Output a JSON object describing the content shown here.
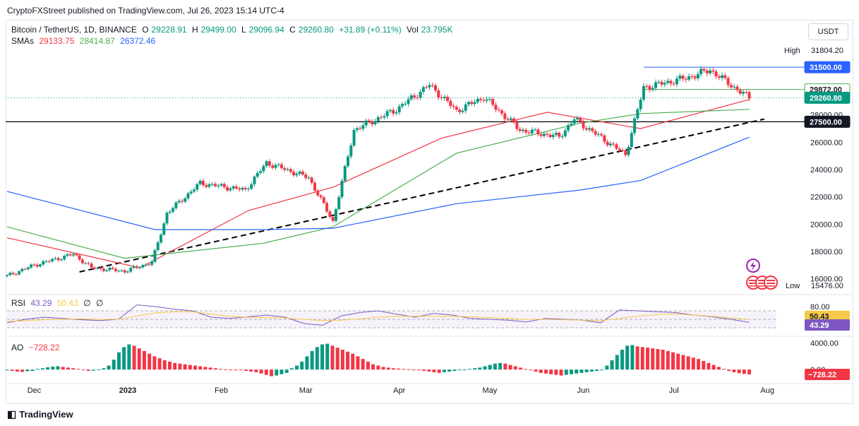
{
  "header": {
    "published": "CryptoFXStreet published on TradingView.com, Jul 26, 2023 15:14 UTC-4"
  },
  "legend": {
    "symbol": "Bitcoin / TetherUS, 1D, BINANCE",
    "o_label": "O",
    "o_val": "29228.91",
    "h_label": "H",
    "h_val": "29499.00",
    "l_label": "L",
    "l_val": "29096.94",
    "c_label": "C",
    "c_val": "29260.80",
    "chg": "+31.89 (+0.11%)",
    "vol_label": "Vol",
    "vol_val": "23.795K",
    "sma_label": "SMAs",
    "sma1": "29133.75",
    "sma2": "28414.87",
    "sma3": "26372.46"
  },
  "currency_button": "USDT",
  "high_label": "High",
  "high_value": "31804.20",
  "low_label": "Low",
  "low_value": "15476.00",
  "rsi_legend": {
    "label": "RSI",
    "v1": "43.29",
    "v2": "50.43",
    "v3": "∅",
    "v4": "∅"
  },
  "ao_legend": {
    "label": "AO",
    "v1": "−728.22"
  },
  "footer": {
    "brand": "TradingView"
  },
  "colors": {
    "up": "#089981",
    "down": "#f23645",
    "sma50": "#f23645",
    "sma100": "#4caf50",
    "sma200": "#2962ff",
    "rsi": "#7e57c2",
    "rsi_ma": "#f7c948",
    "price_line": "#089981"
  },
  "chart_data": [
    {
      "type": "candlestick",
      "title": "Bitcoin / TetherUS, 1D, BINANCE",
      "x_ticks": [
        "Dec",
        "2023",
        "Feb",
        "Mar",
        "Apr",
        "May",
        "Jun",
        "Jul",
        "Aug"
      ],
      "y_ticks": [
        "16000.00",
        "18000.00",
        "20000.00",
        "22000.00",
        "24000.00",
        "26000.00",
        "28000.00",
        "30000.00"
      ],
      "ylim": [
        15200,
        32800
      ],
      "price_tags": [
        {
          "value": 31500,
          "label": "31500.00",
          "style": "blue"
        },
        {
          "value": 29872,
          "label": "29872.00",
          "style": "green"
        },
        {
          "value": 29260.8,
          "label": "29260.80",
          "style": "green-solid"
        },
        {
          "value": 27500,
          "label": "27500.00",
          "style": "black"
        }
      ],
      "horizontal_lines": [
        {
          "value": 31500,
          "color": "#2962ff"
        },
        {
          "value": 29872,
          "color": "#4caf50"
        },
        {
          "value": 27500,
          "color": "#000000"
        }
      ],
      "trendline": {
        "from": [
          "2022-12-16",
          16500
        ],
        "to": [
          "2023-07-31",
          27700
        ],
        "style": "dashed"
      },
      "series_close_approx": [
        [
          "2022-11-22",
          16200
        ],
        [
          "2022-12-01",
          17000
        ],
        [
          "2022-12-14",
          17800
        ],
        [
          "2022-12-20",
          16800
        ],
        [
          "2022-12-31",
          16550
        ],
        [
          "2023-01-09",
          17200
        ],
        [
          "2023-01-14",
          20800
        ],
        [
          "2023-01-25",
          23000
        ],
        [
          "2023-02-09",
          22500
        ],
        [
          "2023-02-16",
          24500
        ],
        [
          "2023-03-02",
          23400
        ],
        [
          "2023-03-10",
          20200
        ],
        [
          "2023-03-17",
          26900
        ],
        [
          "2023-03-31",
          28400
        ],
        [
          "2023-04-11",
          30200
        ],
        [
          "2023-04-20",
          28300
        ],
        [
          "2023-04-29",
          29300
        ],
        [
          "2023-05-11",
          26900
        ],
        [
          "2023-05-24",
          26400
        ],
        [
          "2023-05-29",
          27700
        ],
        [
          "2023-06-15",
          25100
        ],
        [
          "2023-06-21",
          30000
        ],
        [
          "2023-07-05",
          30700
        ],
        [
          "2023-07-13",
          31300
        ],
        [
          "2023-07-23",
          29700
        ],
        [
          "2023-07-26",
          29260
        ]
      ],
      "sma_lines": [
        {
          "name": "SMA 50",
          "points": [
            [
              "2022-11-22",
              19000
            ],
            [
              "2023-01-05",
              16800
            ],
            [
              "2023-02-10",
              21000
            ],
            [
              "2023-03-10",
              22700
            ],
            [
              "2023-04-15",
              26300
            ],
            [
              "2023-05-20",
              28200
            ],
            [
              "2023-06-20",
              27000
            ],
            [
              "2023-07-26",
              29130
            ]
          ]
        },
        {
          "name": "SMA 100",
          "points": [
            [
              "2022-11-22",
              19800
            ],
            [
              "2022-12-31",
              17500
            ],
            [
              "2023-02-15",
              18600
            ],
            [
              "2023-03-10",
              19800
            ],
            [
              "2023-04-20",
              25200
            ],
            [
              "2023-05-31",
              27400
            ],
            [
              "2023-06-20",
              28100
            ],
            [
              "2023-07-26",
              28410
            ]
          ]
        },
        {
          "name": "SMA 200",
          "points": [
            [
              "2022-11-22",
              22400
            ],
            [
              "2023-01-10",
              19600
            ],
            [
              "2023-02-15",
              19600
            ],
            [
              "2023-03-10",
              19700
            ],
            [
              "2023-04-20",
              21500
            ],
            [
              "2023-05-31",
              22500
            ],
            [
              "2023-06-20",
              23200
            ],
            [
              "2023-07-26",
              26370
            ]
          ]
        }
      ]
    },
    {
      "type": "line",
      "title": "RSI",
      "y_ticks": [
        "80.00"
      ],
      "ylim": [
        20,
        90
      ],
      "price_tags": [
        {
          "label": "50.43",
          "style": "yellow"
        },
        {
          "label": "43.29",
          "style": "purple"
        }
      ],
      "series": [
        {
          "name": "RSI",
          "values": [
            42,
            50,
            55,
            52,
            49,
            47,
            50,
            84,
            80,
            74,
            70,
            55,
            52,
            56,
            60,
            55,
            40,
            36,
            58,
            66,
            70,
            62,
            55,
            64,
            60,
            52,
            50,
            48,
            44,
            52,
            50,
            48,
            42,
            72,
            70,
            68,
            66,
            60,
            56,
            50,
            43
          ]
        },
        {
          "name": "MA",
          "values": [
            45,
            47,
            49,
            50,
            51,
            50,
            50,
            58,
            65,
            68,
            68,
            62,
            57,
            55,
            54,
            53,
            50,
            47,
            48,
            51,
            55,
            57,
            57,
            57,
            57,
            56,
            54,
            52,
            50,
            50,
            49,
            48,
            47,
            52,
            57,
            61,
            63,
            60,
            57,
            53,
            50
          ]
        }
      ]
    },
    {
      "type": "bar",
      "title": "AO",
      "y_ticks": [
        "4000.00",
        "0.00"
      ],
      "ylim": [
        -1800,
        4600
      ],
      "price_tags": [
        {
          "label": "−728.22",
          "style": "red"
        }
      ],
      "values": [
        -100,
        -200,
        -300,
        -350,
        -250,
        -200,
        100,
        200,
        350,
        450,
        500,
        400,
        300,
        200,
        100,
        -100,
        -200,
        -150,
        -100,
        200,
        600,
        1500,
        2600,
        3400,
        3800,
        3600,
        3200,
        2800,
        2400,
        2000,
        1700,
        1400,
        1200,
        1000,
        900,
        800,
        700,
        600,
        500,
        400,
        300,
        200,
        100,
        50,
        0,
        -50,
        -100,
        -200,
        -300,
        -400,
        -600,
        -800,
        -1000,
        -900,
        -700,
        -500,
        200,
        600,
        1200,
        2000,
        2800,
        3400,
        3800,
        3900,
        3600,
        3300,
        3000,
        2700,
        2400,
        2000,
        1600,
        1200,
        800,
        600,
        400,
        300,
        200,
        150,
        100,
        50,
        0,
        -100,
        -200,
        -300,
        -400,
        -500,
        -400,
        -300,
        -200,
        -100,
        0,
        100,
        200,
        300,
        500,
        700,
        900,
        1000,
        900,
        700,
        500,
        300,
        100,
        -100,
        -300,
        -500,
        -600,
        -700,
        -800,
        -900,
        -800,
        -700,
        -600,
        -500,
        -400,
        -300,
        -200,
        0,
        600,
        1400,
        2200,
        3000,
        3600,
        3700,
        3500,
        3400,
        3300,
        3200,
        3100,
        3000,
        2800,
        2600,
        2400,
        2200,
        2000,
        1800,
        1600,
        1300,
        1000,
        700,
        400,
        100,
        -200,
        -400,
        -550,
        -650,
        -728
      ]
    }
  ]
}
